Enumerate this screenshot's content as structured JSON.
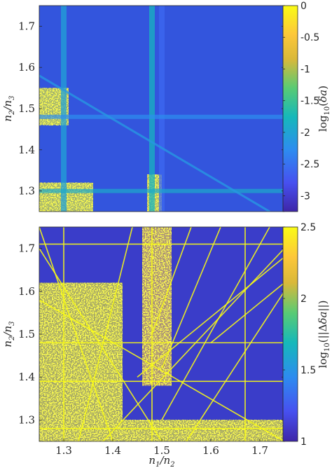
{
  "chart_data": [
    {
      "type": "heatmap",
      "panel": "top",
      "xlim": [
        1.25,
        1.75
      ],
      "ylim": [
        1.25,
        1.75
      ],
      "x_ticks": [],
      "y_ticks": [
        {
          "value": 1.3,
          "label": "1.3"
        },
        {
          "value": 1.4,
          "label": "1.4"
        },
        {
          "value": 1.5,
          "label": "1.5"
        },
        {
          "value": 1.6,
          "label": "1.6"
        },
        {
          "value": 1.7,
          "label": "1.7"
        }
      ],
      "xlabel": "",
      "ylabel": "n2/n3",
      "colorbar": {
        "label": "log10(δa)",
        "range": [
          -3.25,
          0
        ],
        "colormap": [
          "#3e26a8",
          "#4750f0",
          "#2d8cf0",
          "#16b8ba",
          "#59cb74",
          "#d9b83a",
          "#fdc73a",
          "#f9fb15"
        ],
        "ticks": [
          {
            "value": 0,
            "label": "0"
          },
          {
            "value": -0.5,
            "label": "-0.5"
          },
          {
            "value": -1,
            "label": "-1"
          },
          {
            "value": -1.5,
            "label": "-1.5"
          },
          {
            "value": -2,
            "label": "-2"
          },
          {
            "value": -2.5,
            "label": "-2.5"
          },
          {
            "value": -3,
            "label": "-3"
          }
        ]
      },
      "background_color": "#3355dd",
      "features": [
        {
          "kind": "vline",
          "x": 1.3,
          "value": -2.1
        },
        {
          "kind": "vline",
          "x": 1.48,
          "value": -1.9
        },
        {
          "kind": "vline",
          "x": 1.5,
          "value": -2.6
        },
        {
          "kind": "hline",
          "y": 1.48,
          "value": -2.3
        },
        {
          "kind": "hline",
          "y": 1.3,
          "value": -2.0
        },
        {
          "kind": "diagonal",
          "from": [
            1.25,
            1.58
          ],
          "to": [
            1.72,
            1.25
          ],
          "value": -2.2
        }
      ],
      "high_regions": [
        {
          "x": [
            1.25,
            1.36
          ],
          "y": [
            1.25,
            1.32
          ],
          "value": 0
        },
        {
          "x": [
            1.47,
            1.5
          ],
          "y": [
            1.25,
            1.34
          ],
          "value": 0
        },
        {
          "x": [
            1.25,
            1.31
          ],
          "y": [
            1.46,
            1.55
          ],
          "value": 0
        }
      ]
    },
    {
      "type": "heatmap",
      "panel": "bottom",
      "xlim": [
        1.25,
        1.75
      ],
      "ylim": [
        1.25,
        1.75
      ],
      "x_ticks": [
        {
          "value": 1.3,
          "label": "1.3"
        },
        {
          "value": 1.4,
          "label": "1.4"
        },
        {
          "value": 1.5,
          "label": "1.5"
        },
        {
          "value": 1.6,
          "label": "1.6"
        },
        {
          "value": 1.7,
          "label": "1.7"
        }
      ],
      "y_ticks": [
        {
          "value": 1.3,
          "label": "1.3"
        },
        {
          "value": 1.4,
          "label": "1.4"
        },
        {
          "value": 1.5,
          "label": "1.5"
        },
        {
          "value": 1.6,
          "label": "1.6"
        },
        {
          "value": 1.7,
          "label": "1.7"
        }
      ],
      "xlabel": "n1/n2",
      "ylabel": "n2/n3",
      "colorbar": {
        "label": "log10(||Δδa||)",
        "range": [
          1,
          2.5
        ],
        "colormap": [
          "#3e26a8",
          "#4750f0",
          "#2d8cf0",
          "#16b8ba",
          "#59cb74",
          "#d9b83a",
          "#fdc73a",
          "#f9fb15"
        ],
        "ticks": [
          {
            "value": 1,
            "label": "1"
          },
          {
            "value": 1.5,
            "label": "1.5"
          },
          {
            "value": 2,
            "label": "2"
          },
          {
            "value": 2.5,
            "label": "2.5"
          }
        ]
      },
      "background_color": "#3a3dc9",
      "resonance_lines": [
        {
          "from": [
            1.3,
            1.25
          ],
          "to": [
            1.3,
            1.75
          ]
        },
        {
          "from": [
            1.48,
            1.25
          ],
          "to": [
            1.48,
            1.75
          ]
        },
        {
          "from": [
            1.67,
            1.25
          ],
          "to": [
            1.67,
            1.75
          ]
        },
        {
          "from": [
            1.25,
            1.48
          ],
          "to": [
            1.75,
            1.48
          ]
        },
        {
          "from": [
            1.25,
            1.71
          ],
          "to": [
            1.75,
            1.71
          ]
        },
        {
          "from": [
            1.25,
            1.39
          ],
          "to": [
            1.75,
            1.39
          ]
        },
        {
          "from": [
            1.25,
            1.28
          ],
          "to": [
            1.75,
            1.28
          ]
        },
        {
          "from": [
            1.25,
            1.7
          ],
          "to": [
            1.5,
            1.25
          ]
        },
        {
          "from": [
            1.25,
            1.58
          ],
          "to": [
            1.75,
            1.25
          ]
        },
        {
          "from": [
            1.38,
            1.25
          ],
          "to": [
            1.75,
            1.7
          ]
        },
        {
          "from": [
            1.5,
            1.3
          ],
          "to": [
            1.72,
            1.75
          ]
        },
        {
          "from": [
            1.55,
            1.25
          ],
          "to": [
            1.75,
            1.6
          ]
        },
        {
          "from": [
            1.6,
            1.48
          ],
          "to": [
            1.75,
            1.62
          ]
        },
        {
          "from": [
            1.45,
            1.4
          ],
          "to": [
            1.75,
            1.68
          ]
        },
        {
          "from": [
            1.25,
            1.75
          ],
          "to": [
            1.4,
            1.25
          ]
        },
        {
          "from": [
            1.33,
            1.25
          ],
          "to": [
            1.44,
            1.75
          ]
        },
        {
          "from": [
            1.56,
            1.75
          ],
          "to": [
            1.48,
            1.5
          ]
        },
        {
          "from": [
            1.62,
            1.75
          ],
          "to": [
            1.5,
            1.42
          ]
        }
      ],
      "high_regions": [
        {
          "x": [
            1.25,
            1.42
          ],
          "y": [
            1.25,
            1.62
          ],
          "value": 2.5
        },
        {
          "x": [
            1.42,
            1.75
          ],
          "y": [
            1.25,
            1.3
          ],
          "value": 2.5
        },
        {
          "x": [
            1.46,
            1.52
          ],
          "y": [
            1.38,
            1.75
          ],
          "value": 2.3
        }
      ]
    }
  ]
}
